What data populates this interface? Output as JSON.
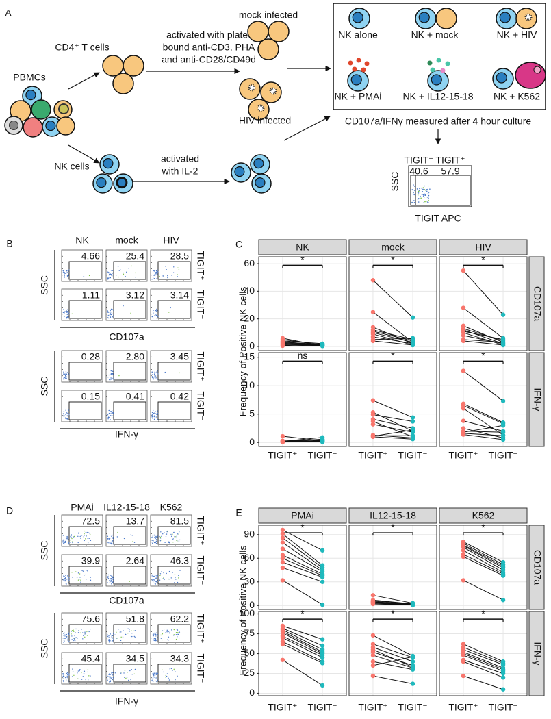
{
  "diagram": {
    "label": "A",
    "pbmc": "PBMCs",
    "cd4": "CD4⁺ T cells",
    "activation": [
      "activated with plate-",
      "bound anti-CD3, PHA",
      "and anti-CD28/CD49d"
    ],
    "mock": "mock infected",
    "hiv": "HIV infected",
    "nk": "NK cells",
    "il2": [
      "activated",
      "with IL-2"
    ],
    "conditions": [
      "NK alone",
      "NK + mock",
      "NK + HIV",
      "NK + PMAi",
      "NK + IL12-15-18",
      "NK + K562"
    ],
    "measured": "CD107a/IFNγ measured after 4 hour culture",
    "gate": {
      "labels": [
        "TIGIT⁻",
        "TIGIT⁺"
      ],
      "values": [
        "40.6",
        "57.9"
      ],
      "ylabel": "SSC",
      "xlabel": "TIGIT APC"
    }
  },
  "flow_panels": [
    {
      "label": "B",
      "columns": [
        "NK",
        "mock",
        "HIV"
      ],
      "row_labels": [
        "TIGIT⁺",
        "TIGIT⁻"
      ],
      "blocks": [
        {
          "ylabel": "SSC",
          "xlabel": "CD107a",
          "gates": [
            [
              "4.66",
              "25.4",
              "28.5"
            ],
            [
              "1.11",
              "3.12",
              "3.14"
            ]
          ]
        },
        {
          "ylabel": "SSC",
          "xlabel": "IFN-γ",
          "gates": [
            [
              "0.28",
              "2.80",
              "3.45"
            ],
            [
              "0.15",
              "0.41",
              "0.42"
            ]
          ]
        }
      ]
    },
    {
      "label": "D",
      "columns": [
        "PMAi",
        "IL12-15-18",
        "K562"
      ],
      "row_labels": [
        "TIGIT⁺",
        "TIGIT⁻"
      ],
      "blocks": [
        {
          "ylabel": "SSC",
          "xlabel": "CD107a",
          "gates": [
            [
              "72.5",
              "13.7",
              "81.5"
            ],
            [
              "39.9",
              "2.64",
              "46.3"
            ]
          ]
        },
        {
          "ylabel": "SSC",
          "xlabel": "IFN-γ",
          "gates": [
            [
              "75.6",
              "51.8",
              "62.2"
            ],
            [
              "45.4",
              "34.5",
              "34.3"
            ]
          ]
        }
      ]
    }
  ],
  "chart_data": [
    {
      "type": "paired-dot",
      "label": "C",
      "ylabel": "Frequency of Positive NK cells",
      "categories": [
        "TIGIT⁺",
        "TIGIT⁻"
      ],
      "colors": [
        "#f8766d",
        "#1fb9bd"
      ],
      "columns": [
        "NK",
        "mock",
        "HIV"
      ],
      "rows": [
        {
          "name": "CD107a",
          "ylim": [
            -3,
            65
          ],
          "yticks": [
            0,
            20,
            40,
            60
          ],
          "facets": [
            {
              "significance": "*",
              "tigit_pos": [
                1,
                2,
                3,
                4,
                5,
                6,
                1.5,
                2.5,
                3.5,
                0.5
              ],
              "tigit_neg": [
                0.5,
                1,
                1.5,
                2,
                1,
                0.3,
                0.8,
                1.2,
                0.6,
                2
              ]
            },
            {
              "significance": "*",
              "tigit_pos": [
                48,
                25,
                14,
                12,
                11,
                10,
                9,
                7,
                5,
                4
              ],
              "tigit_neg": [
                21,
                3,
                2,
                5,
                4,
                3,
                1,
                2,
                6,
                1
              ]
            },
            {
              "significance": "*",
              "tigit_pos": [
                55,
                28,
                15,
                13,
                12,
                11,
                10,
                8,
                5,
                4
              ],
              "tigit_neg": [
                23,
                6,
                3,
                4,
                2,
                5,
                1,
                2,
                3,
                1
              ]
            }
          ]
        },
        {
          "name": "IFN-γ",
          "ylim": [
            -0.7,
            15.8
          ],
          "yticks": [
            0,
            5,
            10,
            15
          ],
          "facets": [
            {
              "significance": "ns",
              "tigit_pos": [
                1.1,
                0.2,
                0.1,
                0.3,
                0.15,
                0.05,
                0.2,
                0.1,
                0.25,
                0.1
              ],
              "tigit_neg": [
                0.3,
                0.9,
                0.6,
                0.2,
                0.1,
                0.4,
                0.1,
                0.2,
                0.5,
                0.3
              ]
            },
            {
              "significance": "*",
              "tigit_pos": [
                7.4,
                5.3,
                4.9,
                4.1,
                3.7,
                3.2,
                1.3,
                1.2,
                1.1,
                1
              ],
              "tigit_neg": [
                4.4,
                2,
                3.7,
                2.5,
                1,
                1.8,
                0.8,
                1.2,
                2.2,
                0.6
              ]
            },
            {
              "significance": "*",
              "tigit_pos": [
                12.6,
                6.8,
                6.5,
                6,
                3.8,
                2.5,
                2,
                1.8,
                1.6,
                1.4
              ],
              "tigit_neg": [
                7.3,
                3.5,
                3.3,
                1.3,
                2,
                0.8,
                1.8,
                3,
                1.2,
                0.5
              ]
            }
          ]
        }
      ]
    },
    {
      "type": "paired-dot",
      "label": "E",
      "ylabel": "Frequency of Positive NK cells",
      "categories": [
        "TIGIT⁺",
        "TIGIT⁻"
      ],
      "colors": [
        "#f8766d",
        "#1fb9bd"
      ],
      "columns": [
        "PMAi",
        "IL12-15-18",
        "K562"
      ],
      "rows": [
        {
          "name": "CD107a",
          "ylim": [
            -5,
            102
          ],
          "yticks": [
            0,
            30,
            60,
            90
          ],
          "facets": [
            {
              "significance": "*",
              "tigit_pos": [
                96,
                91,
                86,
                80,
                72,
                64,
                60,
                55,
                48,
                32
              ],
              "tigit_neg": [
                70,
                51,
                48,
                45,
                43,
                40,
                38,
                36,
                30,
                1
              ]
            },
            {
              "significance": "*",
              "tigit_pos": [
                13,
                7,
                6,
                5,
                5,
                4,
                4,
                3,
                3,
                2
              ],
              "tigit_neg": [
                3,
                2,
                2,
                1,
                1,
                1,
                2,
                0.5,
                1,
                0.5
              ]
            },
            {
              "significance": "*",
              "tigit_pos": [
                81,
                79,
                77,
                76,
                74,
                70,
                65,
                62,
                32
              ],
              "tigit_neg": [
                55,
                52,
                50,
                48,
                45,
                42,
                40,
                38,
                7
              ]
            }
          ]
        },
        {
          "name": "IFN-γ",
          "ylim": [
            -3,
            103
          ],
          "yticks": [
            0,
            25,
            50,
            75,
            100
          ],
          "facets": [
            {
              "significance": "*",
              "tigit_pos": [
                85,
                82,
                80,
                78,
                76,
                72,
                70,
                65,
                62,
                42
              ],
              "tigit_neg": [
                68,
                60,
                55,
                52,
                50,
                48,
                45,
                40,
                38,
                10
              ]
            },
            {
              "significance": "*",
              "tigit_pos": [
                73,
                62,
                58,
                55,
                52,
                48,
                40,
                35,
                22
              ],
              "tigit_neg": [
                47,
                45,
                40,
                33,
                35,
                32,
                30,
                46,
                12
              ]
            },
            {
              "significance": "*",
              "tigit_pos": [
                62,
                58,
                55,
                52,
                50,
                48,
                42,
                40,
                22
              ],
              "tigit_neg": [
                40,
                38,
                36,
                32,
                30,
                28,
                25,
                20,
                5
              ]
            }
          ]
        }
      ]
    }
  ]
}
